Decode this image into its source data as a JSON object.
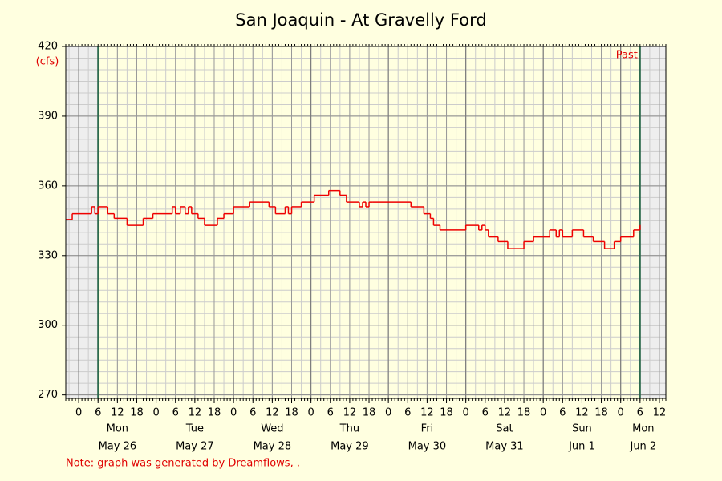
{
  "chart_data": {
    "type": "line",
    "title": "San Joaquin - At Gravelly Ford",
    "y_unit_label": "(cfs)",
    "note": "Note: graph was generated by Dreamflows, .",
    "marker_label": "Past",
    "color": "#ee0000",
    "step": true,
    "grid": true,
    "x_minor_step": 3,
    "y_minor_step": 5,
    "xlim": [
      -4,
      182
    ],
    "ylim": [
      268.5,
      420
    ],
    "yticks": [
      270,
      300,
      330,
      360,
      390,
      420
    ],
    "markers": [
      6,
      174
    ],
    "xticks": [
      {
        "value": 0,
        "label": "0"
      },
      {
        "value": 6,
        "label": "6"
      },
      {
        "value": 12,
        "label": "12"
      },
      {
        "value": 18,
        "label": "18"
      },
      {
        "value": 24,
        "label": "0"
      },
      {
        "value": 30,
        "label": "6"
      },
      {
        "value": 36,
        "label": "12"
      },
      {
        "value": 42,
        "label": "18"
      },
      {
        "value": 48,
        "label": "0"
      },
      {
        "value": 54,
        "label": "6"
      },
      {
        "value": 60,
        "label": "12"
      },
      {
        "value": 66,
        "label": "18"
      },
      {
        "value": 72,
        "label": "0"
      },
      {
        "value": 78,
        "label": "6"
      },
      {
        "value": 84,
        "label": "12"
      },
      {
        "value": 90,
        "label": "18"
      },
      {
        "value": 96,
        "label": "0"
      },
      {
        "value": 102,
        "label": "6"
      },
      {
        "value": 108,
        "label": "12"
      },
      {
        "value": 114,
        "label": "18"
      },
      {
        "value": 120,
        "label": "0"
      },
      {
        "value": 126,
        "label": "6"
      },
      {
        "value": 132,
        "label": "12"
      },
      {
        "value": 138,
        "label": "18"
      },
      {
        "value": 144,
        "label": "0"
      },
      {
        "value": 150,
        "label": "6"
      },
      {
        "value": 156,
        "label": "12"
      },
      {
        "value": 162,
        "label": "18"
      },
      {
        "value": 168,
        "label": "0"
      },
      {
        "value": 174,
        "label": "6"
      },
      {
        "value": 180,
        "label": "12"
      }
    ],
    "days": [
      {
        "value": 0,
        "name": "Mon",
        "date": "May 26"
      },
      {
        "value": 24,
        "name": "Tue",
        "date": "May 27"
      },
      {
        "value": 48,
        "name": "Wed",
        "date": "May 28"
      },
      {
        "value": 72,
        "name": "Thu",
        "date": "May 29"
      },
      {
        "value": 96,
        "name": "Fri",
        "date": "May 30"
      },
      {
        "value": 120,
        "name": "Sat",
        "date": "May 31"
      },
      {
        "value": 144,
        "name": "Sun",
        "date": "Jun 1"
      },
      {
        "value": 168,
        "name": "Mon",
        "date": "Jun 2"
      }
    ],
    "x": [
      -4,
      -2,
      4,
      5,
      6,
      9,
      11,
      15,
      20,
      23,
      29,
      30,
      31.5,
      33,
      34,
      35,
      37,
      39,
      43,
      45,
      48,
      53,
      59,
      61,
      64,
      65,
      66,
      69,
      73,
      77.5,
      81,
      83,
      87,
      88,
      89,
      90,
      91,
      103,
      107,
      109,
      110,
      112,
      120,
      124,
      125,
      126,
      127,
      130,
      133,
      138,
      141,
      146,
      148,
      149,
      150,
      153,
      156.5,
      159.5,
      163,
      166,
      168,
      172,
      174
    ],
    "values": [
      345.5,
      348,
      351,
      348,
      351,
      348,
      346,
      343,
      346,
      348,
      351,
      348,
      351,
      348,
      351,
      348,
      346,
      343,
      346,
      348,
      351,
      353,
      351,
      348,
      351,
      348,
      351,
      353,
      356,
      358,
      356,
      353,
      351,
      353,
      351,
      353,
      353,
      351,
      348,
      346,
      343,
      341,
      343,
      341,
      343,
      341,
      338,
      336,
      333,
      336,
      338,
      341,
      338,
      341,
      338,
      341,
      338,
      336,
      333,
      336,
      338,
      341,
      343
    ]
  }
}
